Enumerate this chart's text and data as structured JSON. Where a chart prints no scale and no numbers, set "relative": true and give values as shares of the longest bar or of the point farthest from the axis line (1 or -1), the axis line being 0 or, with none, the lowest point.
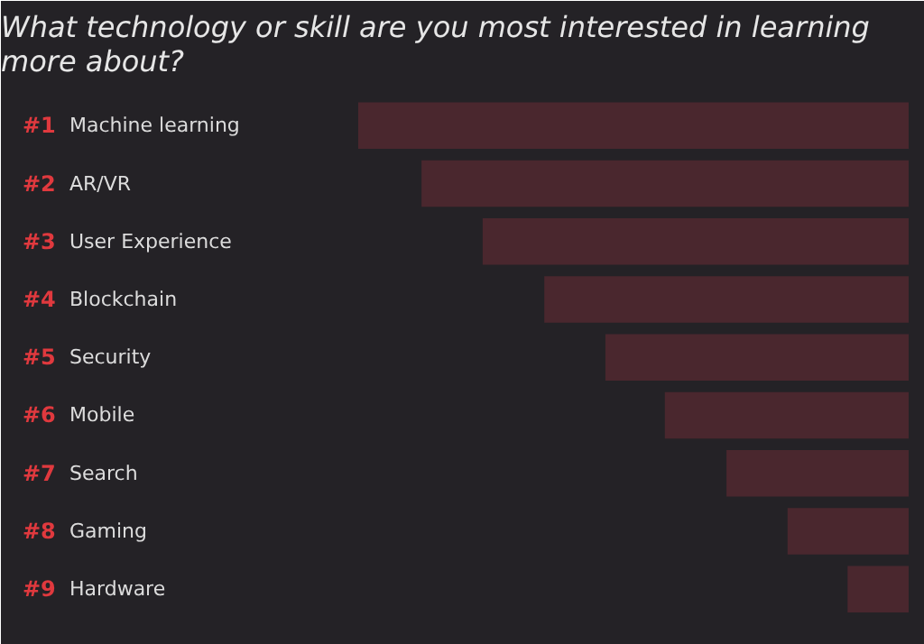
{
  "chart_data": {
    "type": "bar",
    "orientation": "horizontal",
    "relative": true,
    "title": "What technology or skill are you most interested in learning more about?",
    "categories": [
      "Machine learning",
      "AR/VR",
      "User Experience",
      "Blockchain",
      "Security",
      "Mobile",
      "Search",
      "Gaming",
      "Hardware"
    ],
    "values": [
      1,
      0.885,
      0.774,
      0.662,
      0.551,
      0.443,
      0.331,
      0.22,
      0.111
    ],
    "color": "#4a272e",
    "annotations": [
      "#1",
      "#2",
      "#3",
      "#4",
      "#5",
      "#6",
      "#7",
      "#8",
      "#9"
    ],
    "grid": false
  }
}
